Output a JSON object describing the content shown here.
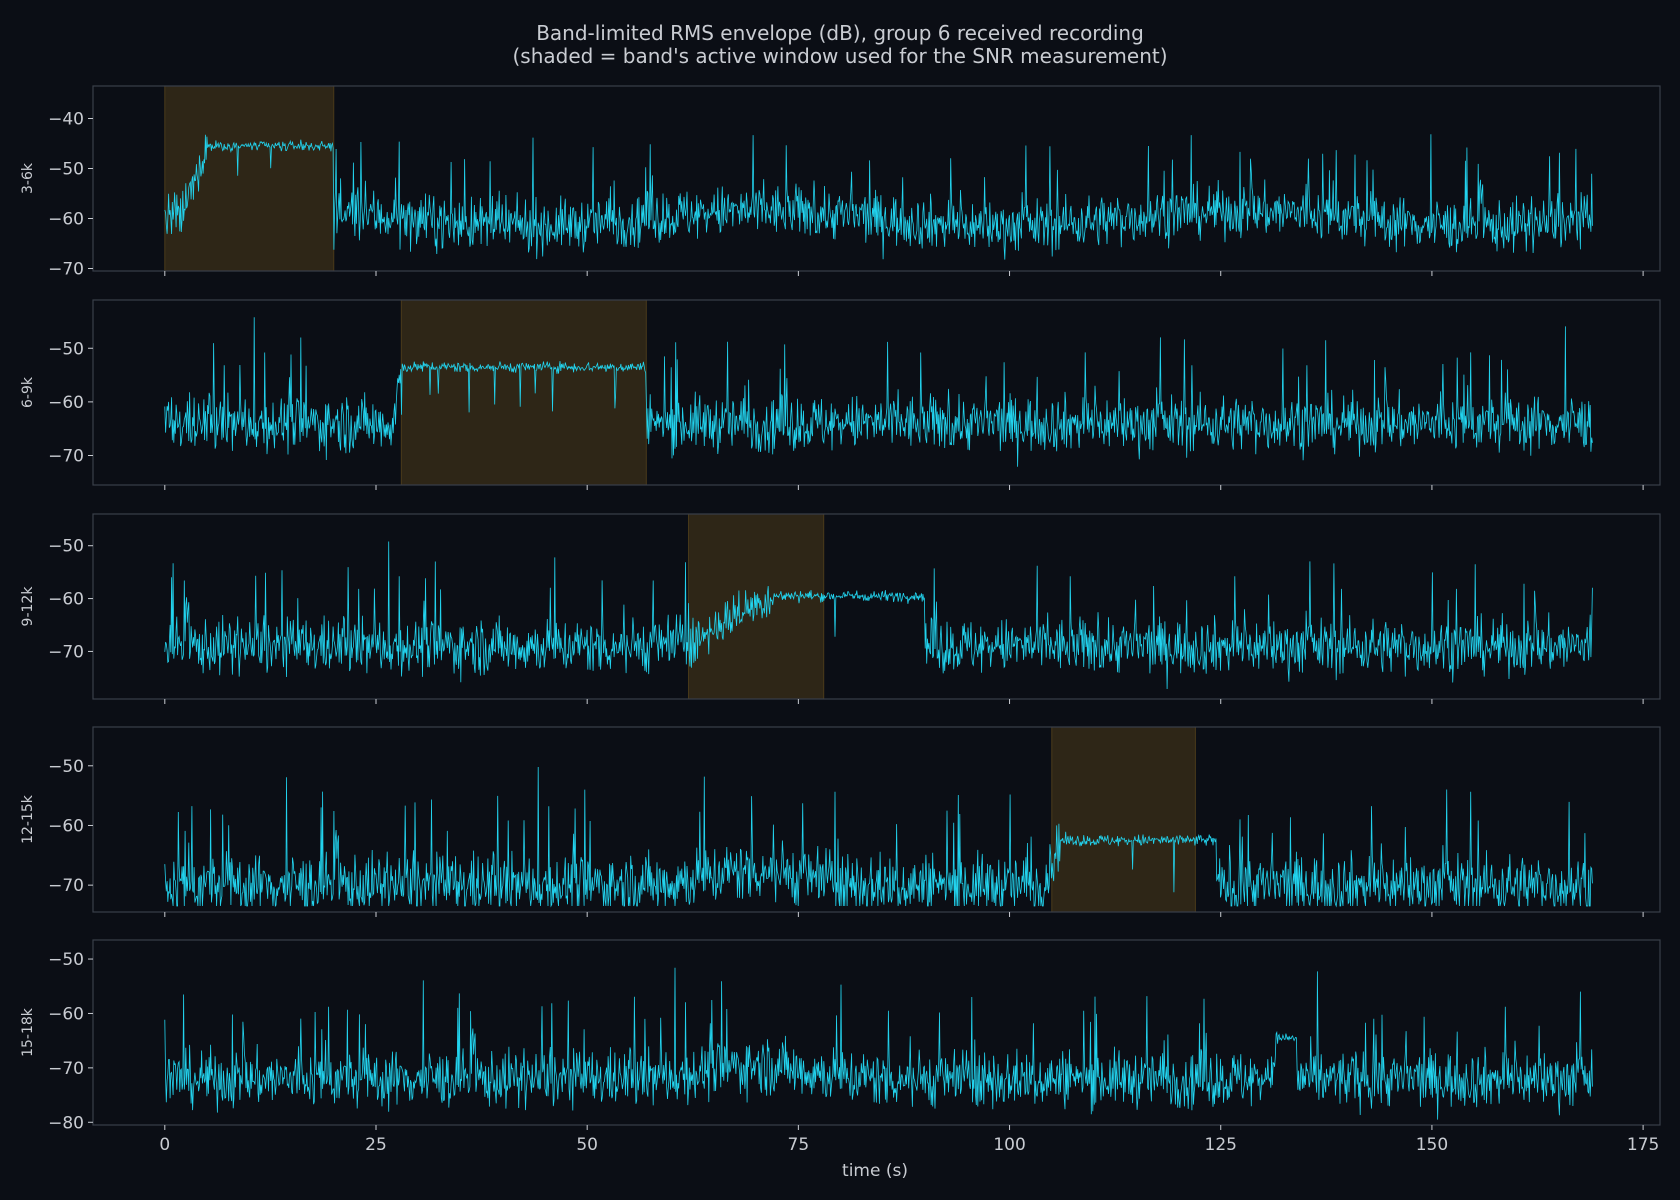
{
  "chart_data": {
    "type": "line",
    "title_line1": "Band-limited RMS envelope (dB), group 6 received recording",
    "title_line2": "(shaded = band's active window used for the SNR measurement)",
    "xlabel": "time (s)",
    "xlim": [
      -8.5,
      177
    ],
    "xticks": [
      0,
      25,
      50,
      75,
      100,
      125,
      150,
      175
    ],
    "duration_s": 169,
    "colors": {
      "background": "#0b0e15",
      "axes_frame": "#3a3f4a",
      "text": "#c9ccd2",
      "trace": "#22d3ee",
      "shade": "#2e2617",
      "shade_edge": "#4a3a1a"
    },
    "panels": [
      {
        "label": "3-6k",
        "ylim": [
          -70.5,
          -33.5
        ],
        "yticks": [
          -70,
          -60,
          -50,
          -40
        ],
        "active_window": [
          0,
          20
        ],
        "noise_floor": -60,
        "active_level": -45.5,
        "rise_start": 2,
        "rise_end": 5
      },
      {
        "label": "6-9k",
        "ylim": [
          -75.5,
          -41
        ],
        "yticks": [
          -70,
          -60,
          -50
        ],
        "active_window": [
          28,
          57
        ],
        "noise_floor": -64,
        "active_level": -53.5,
        "rise_start": 27,
        "rise_end": 28
      },
      {
        "label": "9-12k",
        "ylim": [
          -79,
          -44
        ],
        "yticks": [
          -70,
          -60,
          -50
        ],
        "active_window": [
          62,
          78
        ],
        "noise_floor": -69,
        "active_level": -59.5,
        "rise_start": 63,
        "rise_end": 72,
        "hold_until": 90
      },
      {
        "label": "12-15k",
        "ylim": [
          -74.5,
          -43.5
        ],
        "yticks": [
          -70,
          -60,
          -50
        ],
        "active_window": [
          105,
          122
        ],
        "noise_floor": -70,
        "active_level": -62.5,
        "rise_start": 104,
        "rise_end": 106,
        "hold_until": 124.5
      },
      {
        "label": "15-18k",
        "ylim": [
          -80.5,
          -46.5
        ],
        "yticks": [
          -80,
          -70,
          -60,
          -50
        ],
        "active_window": null,
        "noise_floor": -72,
        "active_level": -64.5,
        "rise_start": 131,
        "rise_end": 131.5,
        "hold_until": 134
      }
    ]
  }
}
